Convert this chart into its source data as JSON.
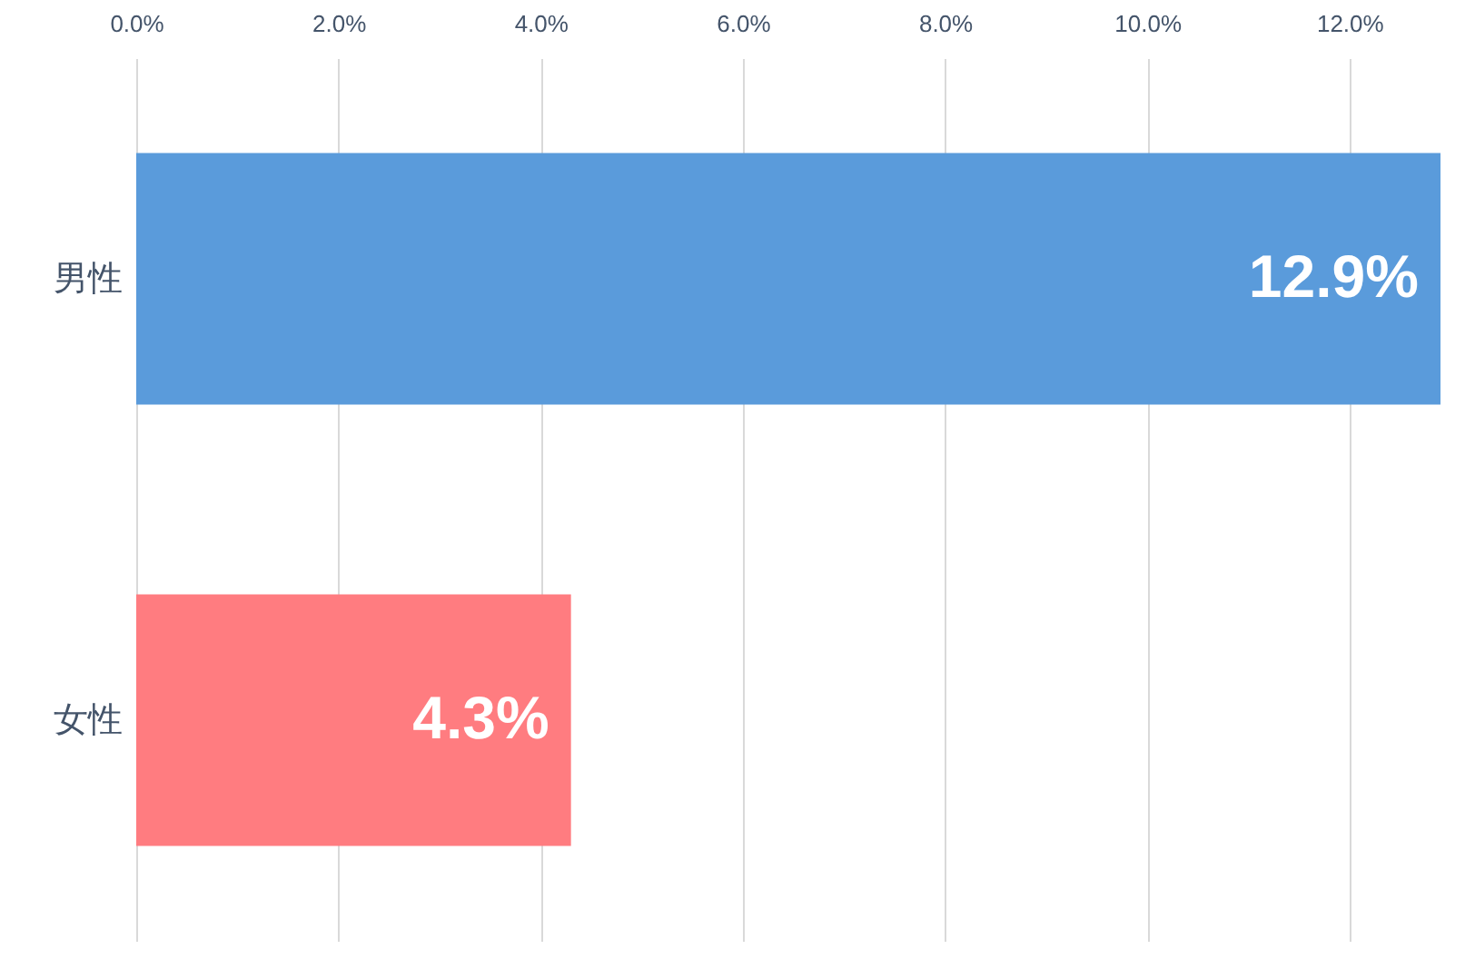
{
  "chart_data": {
    "type": "bar",
    "orientation": "horizontal",
    "categories": [
      "男性",
      "女性"
    ],
    "values": [
      12.9,
      4.3
    ],
    "colors": [
      "#5a9bdb",
      "#ff7c80"
    ],
    "value_labels": [
      "12.9%",
      "4.3%"
    ],
    "xlim": [
      0,
      12.9
    ],
    "xticks": [
      {
        "value": 0,
        "label": "0.0%"
      },
      {
        "value": 2,
        "label": "2.0%"
      },
      {
        "value": 4,
        "label": "4.0%"
      },
      {
        "value": 6,
        "label": "6.0%"
      },
      {
        "value": 8,
        "label": "8.0%"
      },
      {
        "value": 10,
        "label": "10.0%"
      },
      {
        "value": 12,
        "label": "12.0%"
      }
    ],
    "grid": "x"
  }
}
